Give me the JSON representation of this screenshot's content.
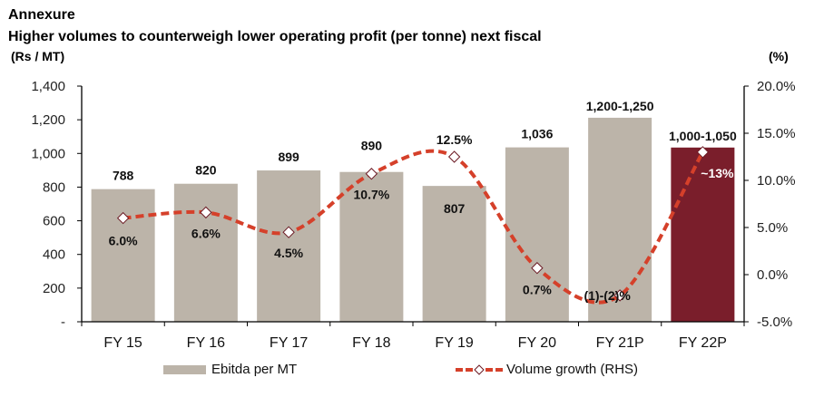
{
  "header": {
    "section": "Annexure",
    "title": "Higher volumes to counterweigh lower operating profit (per tonne) next fiscal",
    "left_unit": "(Rs / MT)",
    "right_unit": "(%)"
  },
  "colors": {
    "bar": "#bcb4a9",
    "bar_highlight": "#7a1e2b",
    "line": "#d5402a",
    "marker_edge": "#6b1a24",
    "axis": "#000000"
  },
  "chart_data": {
    "type": "bar",
    "title": "Higher volumes to counterweigh lower operating profit (per tonne) next fiscal",
    "categories": [
      "FY 15",
      "FY 16",
      "FY 17",
      "FY 18",
      "FY 19",
      "FY 20",
      "FY 21P",
      "FY 22P"
    ],
    "series": [
      {
        "name": "Ebitda per MT",
        "type": "bar",
        "axis": "left",
        "values": [
          788,
          820,
          899,
          890,
          807,
          1036,
          1212,
          1035
        ],
        "labels": [
          "788",
          "820",
          "899",
          "890",
          "807",
          "1,036",
          "1,200-1,250",
          "1,000-1,050"
        ],
        "highlight_index": 7
      },
      {
        "name": "Volume growth (RHS)",
        "type": "line",
        "axis": "right",
        "style": "dashed-smooth",
        "values": [
          6.0,
          6.6,
          4.5,
          10.7,
          12.5,
          0.7,
          -2.2,
          13.0
        ],
        "labels": [
          "6.0%",
          "6.6%",
          "4.5%",
          "10.7%",
          "12.5%",
          "0.7%",
          "(1)-(2)%",
          "~13%"
        ]
      }
    ],
    "y_left": {
      "label": "(Rs / MT)",
      "range": [
        0,
        1400
      ],
      "ticks": [
        0,
        200,
        400,
        600,
        800,
        1000,
        1200,
        1400
      ],
      "tick_labels": [
        "-",
        "200",
        "400",
        "600",
        "800",
        "1,000",
        "1,200",
        "1,400"
      ]
    },
    "y_right": {
      "label": "(%)",
      "range": [
        -5,
        20
      ],
      "ticks": [
        -5,
        0,
        5,
        10,
        15,
        20
      ],
      "tick_labels": [
        "-5.0%",
        "0.0%",
        "5.0%",
        "10.0%",
        "15.0%",
        "20.0%"
      ]
    },
    "grid": false,
    "legend_position": "bottom",
    "legend": [
      "Ebitda per MT",
      "Volume growth (RHS)"
    ]
  }
}
